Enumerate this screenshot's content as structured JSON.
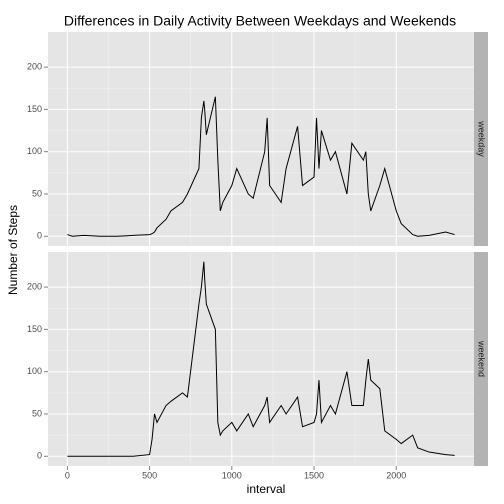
{
  "chart_data": {
    "type": "line",
    "title": "Differences in Daily Activity Between Weekdays and Weekends",
    "x_label": "interval",
    "y_label": "Number of Steps",
    "x": [
      0,
      30,
      100,
      200,
      300,
      400,
      500,
      515,
      530,
      545,
      600,
      630,
      700,
      730,
      800,
      815,
      830,
      835,
      845,
      900,
      915,
      930,
      945,
      1000,
      1030,
      1100,
      1130,
      1200,
      1215,
      1230,
      1300,
      1330,
      1400,
      1430,
      1500,
      1515,
      1530,
      1545,
      1600,
      1630,
      1700,
      1730,
      1800,
      1815,
      1830,
      1845,
      1900,
      1930,
      2000,
      2030,
      2100,
      2130,
      2200,
      2300,
      2355
    ],
    "series": [
      {
        "name": "weekday",
        "color": "#000000",
        "values": [
          2,
          0,
          1,
          0,
          0,
          1,
          2,
          3,
          5,
          10,
          20,
          30,
          40,
          50,
          80,
          140,
          160,
          150,
          120,
          165,
          90,
          30,
          40,
          60,
          80,
          50,
          45,
          100,
          140,
          60,
          40,
          80,
          130,
          60,
          70,
          140,
          80,
          125,
          90,
          100,
          50,
          110,
          90,
          100,
          50,
          30,
          60,
          80,
          30,
          15,
          2,
          0,
          1,
          5,
          2
        ]
      },
      {
        "name": "weekend",
        "color": "#000000",
        "values": [
          0,
          0,
          0,
          0,
          0,
          0,
          2,
          20,
          50,
          40,
          60,
          65,
          75,
          70,
          180,
          200,
          230,
          210,
          180,
          150,
          40,
          25,
          30,
          40,
          30,
          50,
          35,
          60,
          70,
          40,
          60,
          50,
          70,
          35,
          40,
          50,
          90,
          40,
          60,
          50,
          100,
          60,
          60,
          90,
          115,
          90,
          80,
          30,
          20,
          15,
          25,
          10,
          5,
          2,
          1
        ]
      }
    ],
    "xlim": [
      -117.75,
      2472.75
    ],
    "xticks": [
      0,
      500,
      1000,
      1500,
      2000
    ],
    "ylim": [
      -11.5,
      241.5
    ],
    "yticks": [
      0,
      50,
      100,
      150,
      200
    ],
    "grid": true
  }
}
